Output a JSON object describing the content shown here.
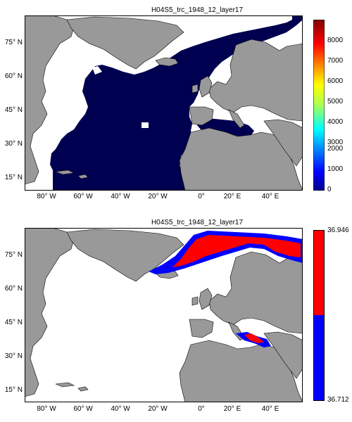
{
  "panels": [
    {
      "title": "H04S5_trc_1948_12_layer17",
      "y_ticks": [
        "75° N",
        "60° N",
        "45° N",
        "30° N",
        "15° N"
      ],
      "x_ticks": [
        "80° W",
        "60° W",
        "40° W",
        "20° W",
        "0°",
        "20° E",
        "40° E"
      ],
      "colorbar": {
        "type": "continuous",
        "ticks": [
          "8000",
          "7000",
          "6000",
          "5000",
          "4000",
          "3000",
          "2000",
          "1000",
          "0"
        ]
      }
    },
    {
      "title": "H04S5_trc_1948_12_layer17",
      "y_ticks": [
        "75° N",
        "60° N",
        "45° N",
        "30° N",
        "15° N"
      ],
      "x_ticks": [
        "80° W",
        "60° W",
        "40° W",
        "20° W",
        "0°",
        "20° E",
        "40° E"
      ],
      "colorbar": {
        "type": "two-level",
        "ticks": [
          "36.946",
          "36.712"
        ],
        "colors": [
          "#ff0000",
          "#0000ff"
        ]
      }
    }
  ],
  "colors": {
    "land": "#999999",
    "ocean_fill": "#000050",
    "no_data": "#ffffff",
    "high": "#ff0000",
    "low": "#0000ff"
  }
}
